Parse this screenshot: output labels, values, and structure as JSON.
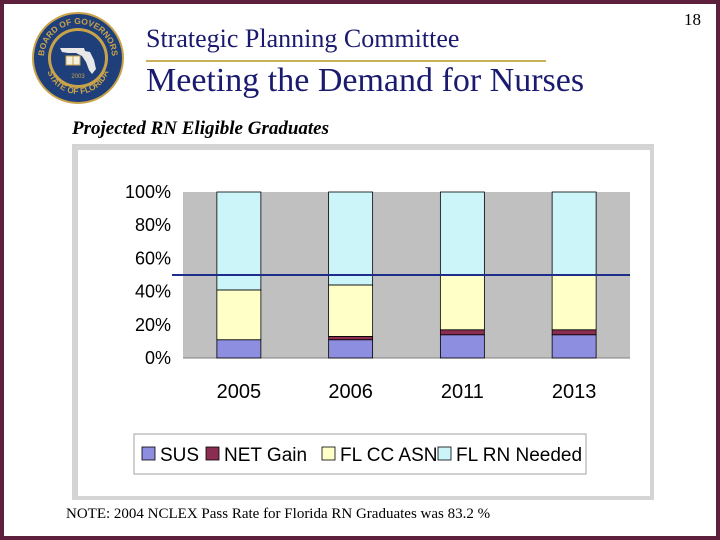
{
  "header": {
    "subtitle": "Strategic Planning Committee",
    "title": "Meeting the Demand for Nurses",
    "page_number": "18"
  },
  "seal": {
    "top_text": "BOARD OF GOVERNORS",
    "bottom_text": "STATE OF FLORIDA",
    "year": "2003"
  },
  "section_title": "Projected RN Eligible Graduates",
  "note": "NOTE:  2004 NCLEX Pass Rate for Florida RN Graduates was 83.2 %",
  "colors": {
    "frame": "#5c1f3c",
    "title_text": "#1a1a6e",
    "plot_area": "#c0c0c0",
    "reference_line": "#1f2d8a"
  },
  "chart_data": {
    "type": "bar",
    "stacked": true,
    "percent_stacked": true,
    "title": "",
    "xlabel": "",
    "ylabel": "",
    "categories": [
      "2005",
      "2006",
      "2011",
      "2013"
    ],
    "series": [
      {
        "name": "SUS",
        "values": [
          11,
          11,
          14,
          14
        ],
        "color": "#8e8ee0"
      },
      {
        "name": "NET Gain",
        "values": [
          0,
          2,
          3,
          3
        ],
        "color": "#8b2d52"
      },
      {
        "name": "FL CC ASN",
        "values": [
          30,
          31,
          33,
          33
        ],
        "color": "#ffffc8"
      },
      {
        "name": "FL RN Needed",
        "values": [
          59,
          56,
          50,
          50
        ],
        "color": "#ccf5fa"
      }
    ],
    "yticks": [
      "100%",
      "80%",
      "60%",
      "40%",
      "20%",
      "0%"
    ],
    "ylim": [
      0,
      100
    ],
    "reference_line": 50,
    "legend_position": "bottom",
    "grid": false
  }
}
